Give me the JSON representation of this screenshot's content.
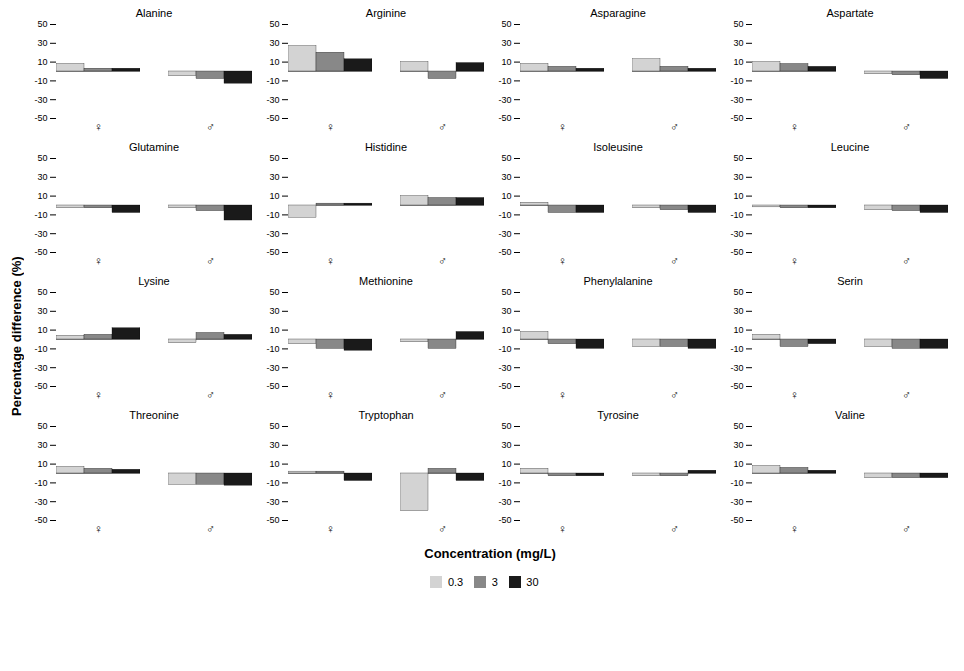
{
  "chart_data": [
    {
      "type": "bar",
      "title": "Alanine",
      "xlabel": "Concentration (mg/L)",
      "ylabel": "Percentage difference (%)",
      "categories": [
        "♀",
        "♂"
      ],
      "series": [
        {
          "name": "0.3",
          "color": "#d3d3d3",
          "values": [
            8,
            -5
          ]
        },
        {
          "name": "3",
          "color": "#888888",
          "values": [
            3,
            -8
          ]
        },
        {
          "name": "30",
          "color": "#1a1a1a",
          "values": [
            3,
            -13
          ]
        }
      ],
      "ylim": [
        -50,
        50
      ],
      "yticks": [
        -50,
        -30,
        -10,
        10,
        30,
        50
      ]
    },
    {
      "type": "bar",
      "title": "Arginine",
      "xlabel": "Concentration (mg/L)",
      "ylabel": "Percentage difference (%)",
      "categories": [
        "♀",
        "♂"
      ],
      "series": [
        {
          "name": "0.3",
          "color": "#d3d3d3",
          "values": [
            27,
            10
          ]
        },
        {
          "name": "3",
          "color": "#888888",
          "values": [
            20,
            -8
          ]
        },
        {
          "name": "30",
          "color": "#1a1a1a",
          "values": [
            13,
            9
          ]
        }
      ],
      "ylim": [
        -50,
        50
      ],
      "yticks": [
        -50,
        -30,
        -10,
        10,
        30,
        50
      ]
    },
    {
      "type": "bar",
      "title": "Asparagine",
      "xlabel": "Concentration (mg/L)",
      "ylabel": "Percentage difference (%)",
      "categories": [
        "♀",
        "♂"
      ],
      "series": [
        {
          "name": "0.3",
          "color": "#d3d3d3",
          "values": [
            8,
            13
          ]
        },
        {
          "name": "3",
          "color": "#888888",
          "values": [
            5,
            5
          ]
        },
        {
          "name": "30",
          "color": "#1a1a1a",
          "values": [
            3,
            3
          ]
        }
      ],
      "ylim": [
        -50,
        50
      ],
      "yticks": [
        -50,
        -30,
        -10,
        10,
        30,
        50
      ]
    },
    {
      "type": "bar",
      "title": "Aspartate",
      "xlabel": "Concentration (mg/L)",
      "ylabel": "Percentage difference (%)",
      "categories": [
        "♀",
        "♂"
      ],
      "series": [
        {
          "name": "0.3",
          "color": "#d3d3d3",
          "values": [
            10,
            -3
          ]
        },
        {
          "name": "3",
          "color": "#888888",
          "values": [
            8,
            -4
          ]
        },
        {
          "name": "30",
          "color": "#1a1a1a",
          "values": [
            5,
            -8
          ]
        }
      ],
      "ylim": [
        -50,
        50
      ],
      "yticks": [
        -50,
        -30,
        -10,
        10,
        30,
        50
      ]
    },
    {
      "type": "bar",
      "title": "Glutamine",
      "xlabel": "Concentration (mg/L)",
      "ylabel": "Percentage difference (%)",
      "categories": [
        "♀",
        "♂"
      ],
      "series": [
        {
          "name": "0.3",
          "color": "#d3d3d3",
          "values": [
            -3,
            -3
          ]
        },
        {
          "name": "3",
          "color": "#888888",
          "values": [
            -3,
            -6
          ]
        },
        {
          "name": "30",
          "color": "#1a1a1a",
          "values": [
            -8,
            -16
          ]
        }
      ],
      "ylim": [
        -50,
        50
      ],
      "yticks": [
        -50,
        -30,
        -10,
        10,
        30,
        50
      ]
    },
    {
      "type": "bar",
      "title": "Histidine",
      "xlabel": "Concentration (mg/L)",
      "ylabel": "Percentage difference (%)",
      "categories": [
        "♀",
        "♂"
      ],
      "series": [
        {
          "name": "0.3",
          "color": "#d3d3d3",
          "values": [
            -13,
            10
          ]
        },
        {
          "name": "3",
          "color": "#888888",
          "values": [
            2,
            8
          ]
        },
        {
          "name": "30",
          "color": "#1a1a1a",
          "values": [
            2,
            8
          ]
        }
      ],
      "ylim": [
        -50,
        50
      ],
      "yticks": [
        -50,
        -30,
        -10,
        10,
        30,
        50
      ]
    },
    {
      "type": "bar",
      "title": "Isoleusine",
      "xlabel": "Concentration (mg/L)",
      "ylabel": "Percentage difference (%)",
      "categories": [
        "♀",
        "♂"
      ],
      "series": [
        {
          "name": "0.3",
          "color": "#d3d3d3",
          "values": [
            3,
            -3
          ]
        },
        {
          "name": "3",
          "color": "#888888",
          "values": [
            -8,
            -5
          ]
        },
        {
          "name": "30",
          "color": "#1a1a1a",
          "values": [
            -8,
            -8
          ]
        }
      ],
      "ylim": [
        -50,
        50
      ],
      "yticks": [
        -50,
        -30,
        -10,
        10,
        30,
        50
      ]
    },
    {
      "type": "bar",
      "title": "Leucine",
      "xlabel": "Concentration (mg/L)",
      "ylabel": "Percentage difference (%)",
      "categories": [
        "♀",
        "♂"
      ],
      "series": [
        {
          "name": "0.3",
          "color": "#d3d3d3",
          "values": [
            -2,
            -5
          ]
        },
        {
          "name": "3",
          "color": "#888888",
          "values": [
            -3,
            -6
          ]
        },
        {
          "name": "30",
          "color": "#1a1a1a",
          "values": [
            -3,
            -8
          ]
        }
      ],
      "ylim": [
        -50,
        50
      ],
      "yticks": [
        -50,
        -30,
        -10,
        10,
        30,
        50
      ]
    },
    {
      "type": "bar",
      "title": "Lysine",
      "xlabel": "Concentration (mg/L)",
      "ylabel": "Percentage difference (%)",
      "categories": [
        "♀",
        "♂"
      ],
      "series": [
        {
          "name": "0.3",
          "color": "#d3d3d3",
          "values": [
            4,
            -4
          ]
        },
        {
          "name": "3",
          "color": "#888888",
          "values": [
            5,
            7
          ]
        },
        {
          "name": "30",
          "color": "#1a1a1a",
          "values": [
            12,
            5
          ]
        }
      ],
      "ylim": [
        -50,
        50
      ],
      "yticks": [
        -50,
        -30,
        -10,
        10,
        30,
        50
      ]
    },
    {
      "type": "bar",
      "title": "Methionine",
      "xlabel": "Concentration (mg/L)",
      "ylabel": "Percentage difference (%)",
      "categories": [
        "♀",
        "♂"
      ],
      "series": [
        {
          "name": "0.3",
          "color": "#d3d3d3",
          "values": [
            -5,
            -3
          ]
        },
        {
          "name": "3",
          "color": "#888888",
          "values": [
            -10,
            -10
          ]
        },
        {
          "name": "30",
          "color": "#1a1a1a",
          "values": [
            -12,
            8
          ]
        }
      ],
      "ylim": [
        -50,
        50
      ],
      "yticks": [
        -50,
        -30,
        -10,
        10,
        30,
        50
      ]
    },
    {
      "type": "bar",
      "title": "Phenylalanine",
      "xlabel": "Concentration (mg/L)",
      "ylabel": "Percentage difference (%)",
      "categories": [
        "♀",
        "♂"
      ],
      "series": [
        {
          "name": "0.3",
          "color": "#d3d3d3",
          "values": [
            8,
            -8
          ]
        },
        {
          "name": "3",
          "color": "#888888",
          "values": [
            -5,
            -8
          ]
        },
        {
          "name": "30",
          "color": "#1a1a1a",
          "values": [
            -10,
            -10
          ]
        }
      ],
      "ylim": [
        -50,
        50
      ],
      "yticks": [
        -50,
        -30,
        -10,
        10,
        30,
        50
      ]
    },
    {
      "type": "bar",
      "title": "Serin",
      "xlabel": "Concentration (mg/L)",
      "ylabel": "Percentage difference (%)",
      "categories": [
        "♀",
        "♂"
      ],
      "series": [
        {
          "name": "0.3",
          "color": "#d3d3d3",
          "values": [
            5,
            -8
          ]
        },
        {
          "name": "3",
          "color": "#888888",
          "values": [
            -8,
            -10
          ]
        },
        {
          "name": "30",
          "color": "#1a1a1a",
          "values": [
            -5,
            -10
          ]
        }
      ],
      "ylim": [
        -50,
        50
      ],
      "yticks": [
        -50,
        -30,
        -10,
        10,
        30,
        50
      ]
    },
    {
      "type": "bar",
      "title": "Threonine",
      "xlabel": "Concentration (mg/L)",
      "ylabel": "Percentage difference (%)",
      "categories": [
        "♀",
        "♂"
      ],
      "series": [
        {
          "name": "0.3",
          "color": "#d3d3d3",
          "values": [
            7,
            -12
          ]
        },
        {
          "name": "3",
          "color": "#888888",
          "values": [
            5,
            -12
          ]
        },
        {
          "name": "30",
          "color": "#1a1a1a",
          "values": [
            4,
            -13
          ]
        }
      ],
      "ylim": [
        -50,
        50
      ],
      "yticks": [
        -50,
        -30,
        -10,
        10,
        30,
        50
      ]
    },
    {
      "type": "bar",
      "title": "Tryptophan",
      "xlabel": "Concentration (mg/L)",
      "ylabel": "Percentage difference (%)",
      "categories": [
        "♀",
        "♂"
      ],
      "series": [
        {
          "name": "0.3",
          "color": "#d3d3d3",
          "values": [
            2,
            -40
          ]
        },
        {
          "name": "3",
          "color": "#888888",
          "values": [
            2,
            5
          ]
        },
        {
          "name": "30",
          "color": "#1a1a1a",
          "values": [
            -8,
            -8
          ]
        }
      ],
      "ylim": [
        -50,
        50
      ],
      "yticks": [
        -50,
        -30,
        -10,
        10,
        30,
        50
      ]
    },
    {
      "type": "bar",
      "title": "Tyrosine",
      "xlabel": "Concentration (mg/L)",
      "ylabel": "Percentage difference (%)",
      "categories": [
        "♀",
        "♂"
      ],
      "series": [
        {
          "name": "0.3",
          "color": "#d3d3d3",
          "values": [
            5,
            -3
          ]
        },
        {
          "name": "3",
          "color": "#888888",
          "values": [
            -3,
            -3
          ]
        },
        {
          "name": "30",
          "color": "#1a1a1a",
          "values": [
            -3,
            3
          ]
        }
      ],
      "ylim": [
        -50,
        50
      ],
      "yticks": [
        -50,
        -30,
        -10,
        10,
        30,
        50
      ]
    },
    {
      "type": "bar",
      "title": "Valine",
      "xlabel": "Concentration (mg/L)",
      "ylabel": "Percentage difference (%)",
      "categories": [
        "♀",
        "♂"
      ],
      "series": [
        {
          "name": "0.3",
          "color": "#d3d3d3",
          "values": [
            8,
            -5
          ]
        },
        {
          "name": "3",
          "color": "#888888",
          "values": [
            6,
            -5
          ]
        },
        {
          "name": "30",
          "color": "#1a1a1a",
          "values": [
            3,
            -5
          ]
        }
      ],
      "ylim": [
        -50,
        50
      ],
      "yticks": [
        -50,
        -30,
        -10,
        10,
        30,
        50
      ]
    }
  ]
}
